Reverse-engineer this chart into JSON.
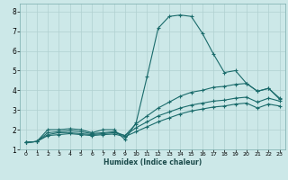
{
  "xlabel": "Humidex (Indice chaleur)",
  "ylabel": "",
  "bg_color": "#cce8e8",
  "grid_color": "#b0d0d0",
  "line_color": "#1a6b6b",
  "xlim": [
    -0.5,
    23.5
  ],
  "ylim": [
    1,
    8.4
  ],
  "xticks": [
    0,
    1,
    2,
    3,
    4,
    5,
    6,
    7,
    8,
    9,
    10,
    11,
    12,
    13,
    14,
    15,
    16,
    17,
    18,
    19,
    20,
    21,
    22,
    23
  ],
  "yticks": [
    1,
    2,
    3,
    4,
    5,
    6,
    7,
    8
  ],
  "series1_x": [
    0,
    1,
    2,
    3,
    4,
    5,
    6,
    7,
    8,
    9,
    10,
    11,
    12,
    13,
    14,
    15,
    16,
    17,
    18,
    19,
    20,
    21,
    22,
    23
  ],
  "series1_y": [
    1.35,
    1.4,
    2.0,
    2.0,
    2.05,
    2.0,
    1.85,
    2.0,
    2.0,
    1.5,
    2.35,
    4.7,
    7.15,
    7.75,
    7.82,
    7.75,
    6.9,
    5.85,
    4.9,
    5.0,
    4.35,
    3.95,
    4.1,
    3.55
  ],
  "series2_x": [
    0,
    1,
    2,
    3,
    4,
    5,
    6,
    7,
    8,
    9,
    10,
    11,
    12,
    13,
    14,
    15,
    16,
    17,
    18,
    19,
    20,
    21,
    22,
    23
  ],
  "series2_y": [
    1.35,
    1.4,
    1.85,
    1.9,
    1.95,
    1.9,
    1.8,
    1.85,
    1.9,
    1.7,
    2.3,
    2.7,
    3.1,
    3.4,
    3.7,
    3.9,
    4.0,
    4.15,
    4.2,
    4.3,
    4.35,
    3.95,
    4.1,
    3.6
  ],
  "series3_x": [
    0,
    1,
    2,
    3,
    4,
    5,
    6,
    7,
    8,
    9,
    10,
    11,
    12,
    13,
    14,
    15,
    16,
    17,
    18,
    19,
    20,
    21,
    22,
    23
  ],
  "series3_y": [
    1.35,
    1.4,
    1.75,
    1.85,
    1.85,
    1.8,
    1.75,
    1.8,
    1.85,
    1.7,
    2.1,
    2.4,
    2.7,
    2.9,
    3.1,
    3.25,
    3.35,
    3.45,
    3.5,
    3.6,
    3.65,
    3.4,
    3.6,
    3.45
  ],
  "series4_x": [
    0,
    1,
    2,
    3,
    4,
    5,
    6,
    7,
    8,
    9,
    10,
    11,
    12,
    13,
    14,
    15,
    16,
    17,
    18,
    19,
    20,
    21,
    22,
    23
  ],
  "series4_y": [
    1.35,
    1.4,
    1.7,
    1.75,
    1.8,
    1.75,
    1.7,
    1.75,
    1.78,
    1.65,
    1.9,
    2.15,
    2.4,
    2.6,
    2.8,
    2.95,
    3.05,
    3.15,
    3.2,
    3.3,
    3.35,
    3.1,
    3.3,
    3.2
  ]
}
